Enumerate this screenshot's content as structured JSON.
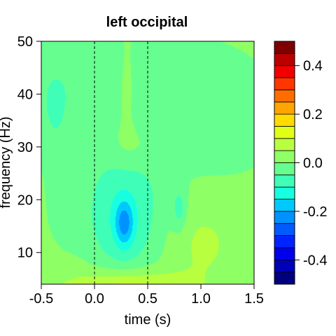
{
  "chart_data": {
    "type": "heatmap",
    "title": "left occipital",
    "xlabel": "time (s)",
    "ylabel": "frequency (Hz)",
    "xlim": [
      -0.5,
      1.5
    ],
    "ylim": [
      4,
      50
    ],
    "x_ticks": [
      -0.5,
      0.0,
      0.5,
      1.0,
      1.5
    ],
    "x_tick_labels": [
      "-0.5",
      "0.0",
      "0.5",
      "1.0",
      "1.5"
    ],
    "y_ticks": [
      10,
      20,
      30,
      40,
      50
    ],
    "y_tick_labels": [
      "10",
      "20",
      "30",
      "40",
      "50"
    ],
    "reference_lines_x": [
      0.0,
      0.5
    ],
    "colorbar": {
      "min": -0.5,
      "max": 0.5,
      "levels": 20,
      "ticks": [
        -0.4,
        -0.2,
        0.0,
        0.2,
        0.4
      ],
      "tick_labels": [
        "-0.4",
        "-0.2",
        "0.0",
        "0.2",
        "0.4"
      ],
      "colors": [
        "#00007f",
        "#0000b6",
        "#0000ed",
        "#0024ff",
        "#005bff",
        "#0092ff",
        "#00c9ff",
        "#16ffe1",
        "#3fffb8",
        "#66ff8f",
        "#8fff66",
        "#b8ff3f",
        "#e1ff16",
        "#ffdb00",
        "#ffa400",
        "#ff6d00",
        "#ff3600",
        "#f20000",
        "#bb0000",
        "#7f0000"
      ]
    },
    "features": [
      {
        "kind": "background",
        "value": 0.02
      },
      {
        "kind": "blob",
        "t": -0.05,
        "f": 43,
        "st": 0.6,
        "sf": 9,
        "amp": -0.06
      },
      {
        "kind": "blob",
        "t": 1.1,
        "f": 36,
        "st": 0.5,
        "sf": 9,
        "amp": -0.05
      },
      {
        "kind": "blob",
        "t": -0.4,
        "f": 36,
        "st": 0.1,
        "sf": 6,
        "amp": -0.03
      },
      {
        "kind": "blob",
        "t": 0.3,
        "f": 40,
        "st": 0.1,
        "sf": 8,
        "amp": 0.05
      },
      {
        "kind": "blob",
        "t": 0.4,
        "f": 30,
        "st": 0.25,
        "sf": 3,
        "amp": 0.035
      },
      {
        "kind": "blob",
        "t": 0.27,
        "f": 17,
        "st": 0.27,
        "sf": 9,
        "amp": -0.12
      },
      {
        "kind": "blob",
        "t": 0.28,
        "f": 15.5,
        "st": 0.06,
        "sf": 3,
        "amp": -0.14
      },
      {
        "kind": "blob",
        "t": 0.8,
        "f": 18,
        "st": 0.05,
        "sf": 3,
        "amp": -0.08
      },
      {
        "kind": "blob",
        "t": 0.3,
        "f": 3,
        "st": 0.35,
        "sf": 2.5,
        "amp": 0.14
      },
      {
        "kind": "blob",
        "t": 1.0,
        "f": 12,
        "st": 0.25,
        "sf": 6,
        "amp": 0.04
      },
      {
        "kind": "blob",
        "t": -0.35,
        "f": 7,
        "st": 0.2,
        "sf": 4,
        "amp": 0.02
      },
      {
        "kind": "blob",
        "t": -0.3,
        "f": 20,
        "st": 0.12,
        "sf": 10,
        "amp": -0.035
      }
    ]
  }
}
